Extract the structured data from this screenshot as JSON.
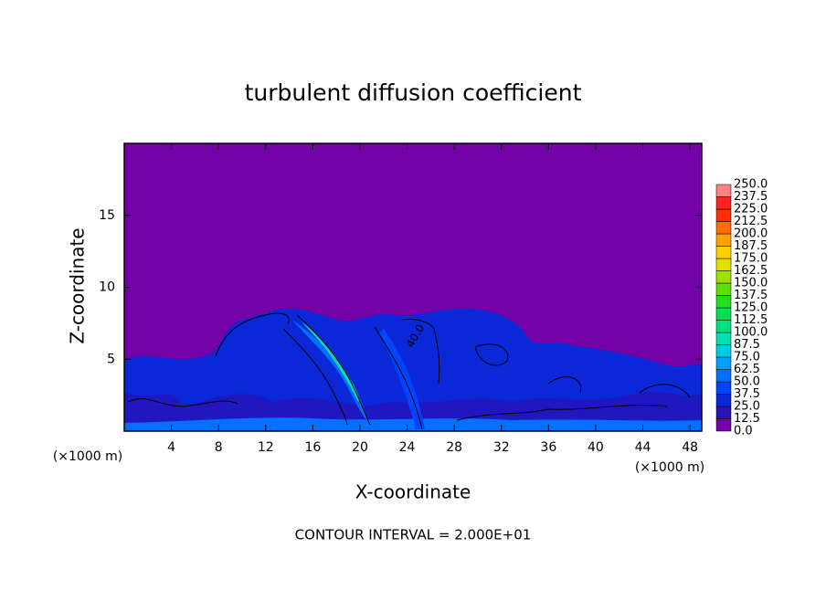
{
  "chart_data": {
    "type": "contour",
    "title": "turbulent diffusion coefficient",
    "xlabel": "X-coordinate",
    "ylabel": "Z-coordinate",
    "x_unit_label": "(×1000 m)",
    "y_unit_label": "(×1000 m)",
    "footnote": "CONTOUR INTERVAL = 2.000E+01",
    "contour_labels": [
      "40.0"
    ],
    "xlim": [
      0,
      49
    ],
    "ylim": [
      0,
      20
    ],
    "xticks": [
      4,
      8,
      12,
      16,
      20,
      24,
      28,
      32,
      36,
      40,
      44,
      48
    ],
    "yticks": [
      5,
      10,
      15
    ],
    "colorbar": {
      "levels": [
        {
          "value": 0,
          "label": "0.0"
        },
        {
          "value": 12.5,
          "label": "12.5"
        },
        {
          "value": 25,
          "label": "25.0"
        },
        {
          "value": 37.5,
          "label": "37.5"
        },
        {
          "value": 50,
          "label": "50.0"
        },
        {
          "value": 62.5,
          "label": "62.5"
        },
        {
          "value": 75,
          "label": "75.0"
        },
        {
          "value": 87.5,
          "label": "87.5"
        },
        {
          "value": 100,
          "label": "100.0"
        },
        {
          "value": 112.5,
          "label": "112.5"
        },
        {
          "value": 125,
          "label": "125.0"
        },
        {
          "value": 137.5,
          "label": "137.5"
        },
        {
          "value": 150,
          "label": "150.0"
        },
        {
          "value": 162.5,
          "label": "162.5"
        },
        {
          "value": 175,
          "label": "175.0"
        },
        {
          "value": 187.5,
          "label": "187.5"
        },
        {
          "value": 200,
          "label": "200.0"
        },
        {
          "value": 212.5,
          "label": "212.5"
        },
        {
          "value": 225,
          "label": "225.0"
        },
        {
          "value": 237.5,
          "label": "237.5"
        },
        {
          "value": 250,
          "label": "250.0"
        }
      ],
      "colors": [
        "#7400a8",
        "#2a10b8",
        "#0a28d8",
        "#0044ff",
        "#0070ff",
        "#00a0ff",
        "#00cce8",
        "#00e0b4",
        "#00e080",
        "#00e050",
        "#20e020",
        "#60e000",
        "#a0e000",
        "#e0e000",
        "#ffd000",
        "#ffa000",
        "#ff7000",
        "#ff3000",
        "#ff2020",
        "#ff8080"
      ]
    }
  }
}
